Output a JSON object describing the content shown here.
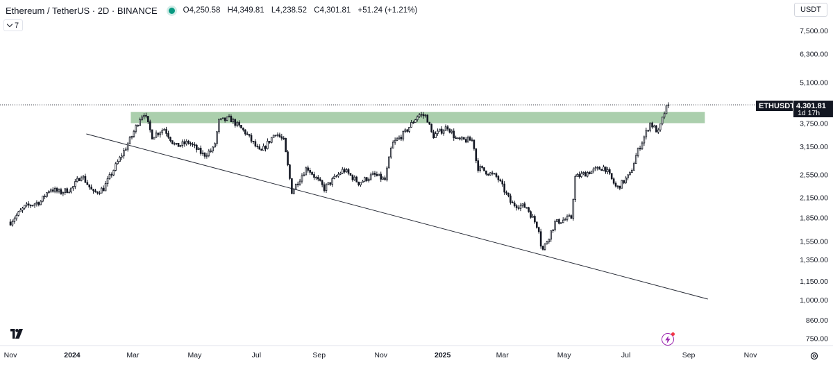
{
  "header": {
    "symbol_title": "Ethereum / TetherUS · 2D · BINANCE",
    "ohlc": {
      "o_label": "O",
      "o_value": "4,250.58",
      "h_label": "H",
      "h_value": "4,349.81",
      "l_label": "L",
      "l_value": "4,238.52",
      "c_label": "C",
      "c_value": "4,301.81",
      "change": "+51.24 (+1.21%)"
    },
    "status_icon": "live-market-dot"
  },
  "indicators_toggle": {
    "label": "7",
    "icon": "chevron-down-icon"
  },
  "currency_button": "USDT",
  "last_price": {
    "symbol": "ETHUSDT",
    "value": "4,301.81",
    "countdown": "1d 17h"
  },
  "colors": {
    "up": "#131722",
    "down": "#131722",
    "zone_fill": "#9cc79f",
    "trendline": "#2a2e39",
    "price_tag_bg": "#131722",
    "live_dot": "#089981",
    "bolt": "#9c27b0"
  },
  "icons": {
    "logo": "tradingview-logo",
    "bolt": "lightning-bolt-icon",
    "settings": "gear-icon"
  },
  "chart_data": {
    "type": "candlestick",
    "title": "Ethereum / TetherUS · 2D · BINANCE",
    "scale": "log",
    "grid": false,
    "ylim": [
      720,
      8600
    ],
    "y_ticks": [
      "7,500.00",
      "6,300.00",
      "5,100.00",
      "3,750.00",
      "3,150.00",
      "2,550.00",
      "2,150.00",
      "1,850.00",
      "1,550.00",
      "1,350.00",
      "1,150.00",
      "1,000.00",
      "860.00",
      "750.00"
    ],
    "x_ticks": [
      {
        "label": "Nov",
        "bold": false
      },
      {
        "label": "2024",
        "bold": true
      },
      {
        "label": "Mar",
        "bold": false
      },
      {
        "label": "May",
        "bold": false
      },
      {
        "label": "Jul",
        "bold": false
      },
      {
        "label": "Sep",
        "bold": false
      },
      {
        "label": "Nov",
        "bold": false
      },
      {
        "label": "2025",
        "bold": true
      },
      {
        "label": "Mar",
        "bold": false
      },
      {
        "label": "May",
        "bold": false
      },
      {
        "label": "Jul",
        "bold": false
      },
      {
        "label": "Sep",
        "bold": false
      },
      {
        "label": "Nov",
        "bold": false
      }
    ],
    "x_tick_dates": [
      "2023-11-01",
      "2024-01-01",
      "2024-03-01",
      "2024-05-01",
      "2024-07-01",
      "2024-09-01",
      "2024-11-01",
      "2025-01-01",
      "2025-03-01",
      "2025-05-01",
      "2025-07-01",
      "2025-09-01",
      "2025-11-01"
    ],
    "last_close": 4301.81,
    "resistance_zone": {
      "from_date": "2024-03-01",
      "to_date": "2025-09-17",
      "low": 3750,
      "high": 4080
    },
    "trendline": {
      "from": [
        "2024-01-15",
        3460
      ],
      "to": [
        "2025-09-20",
        1005
      ]
    },
    "price_keypoints": [
      [
        "2023-11-01",
        1790
      ],
      [
        "2023-11-15",
        2000
      ],
      [
        "2023-12-01",
        2090
      ],
      [
        "2023-12-10",
        2300
      ],
      [
        "2023-12-20",
        2230
      ],
      [
        "2024-01-01",
        2300
      ],
      [
        "2024-01-10",
        2550
      ],
      [
        "2024-01-22",
        2220
      ],
      [
        "2024-02-01",
        2300
      ],
      [
        "2024-02-15",
        2800
      ],
      [
        "2024-02-28",
        3350
      ],
      [
        "2024-03-08",
        3900
      ],
      [
        "2024-03-12",
        4050
      ],
      [
        "2024-03-20",
        3400
      ],
      [
        "2024-04-01",
        3600
      ],
      [
        "2024-04-12",
        3150
      ],
      [
        "2024-04-25",
        3250
      ],
      [
        "2024-05-10",
        2950
      ],
      [
        "2024-05-20",
        3100
      ],
      [
        "2024-05-25",
        3800
      ],
      [
        "2024-06-05",
        3880
      ],
      [
        "2024-06-20",
        3500
      ],
      [
        "2024-07-05",
        3000
      ],
      [
        "2024-07-20",
        3500
      ],
      [
        "2024-07-28",
        3280
      ],
      [
        "2024-08-05",
        2250
      ],
      [
        "2024-08-20",
        2700
      ],
      [
        "2024-09-06",
        2300
      ],
      [
        "2024-09-25",
        2650
      ],
      [
        "2024-10-10",
        2400
      ],
      [
        "2024-10-25",
        2550
      ],
      [
        "2024-11-05",
        2450
      ],
      [
        "2024-11-12",
        3200
      ],
      [
        "2024-11-25",
        3500
      ],
      [
        "2024-12-08",
        4000
      ],
      [
        "2024-12-16",
        3950
      ],
      [
        "2024-12-22",
        3400
      ],
      [
        "2025-01-06",
        3650
      ],
      [
        "2025-01-15",
        3300
      ],
      [
        "2025-01-31",
        3300
      ],
      [
        "2025-02-04",
        2700
      ],
      [
        "2025-02-24",
        2500
      ],
      [
        "2025-03-10",
        2050
      ],
      [
        "2025-03-25",
        2000
      ],
      [
        "2025-04-06",
        1700
      ],
      [
        "2025-04-09",
        1430
      ],
      [
        "2025-04-22",
        1780
      ],
      [
        "2025-05-08",
        1850
      ],
      [
        "2025-05-12",
        2500
      ],
      [
        "2025-05-25",
        2600
      ],
      [
        "2025-06-10",
        2700
      ],
      [
        "2025-06-22",
        2300
      ],
      [
        "2025-07-05",
        2550
      ],
      [
        "2025-07-12",
        3000
      ],
      [
        "2025-07-25",
        3750
      ],
      [
        "2025-08-02",
        3500
      ],
      [
        "2025-08-09",
        4150
      ],
      [
        "2025-08-13",
        4301.81
      ]
    ]
  }
}
